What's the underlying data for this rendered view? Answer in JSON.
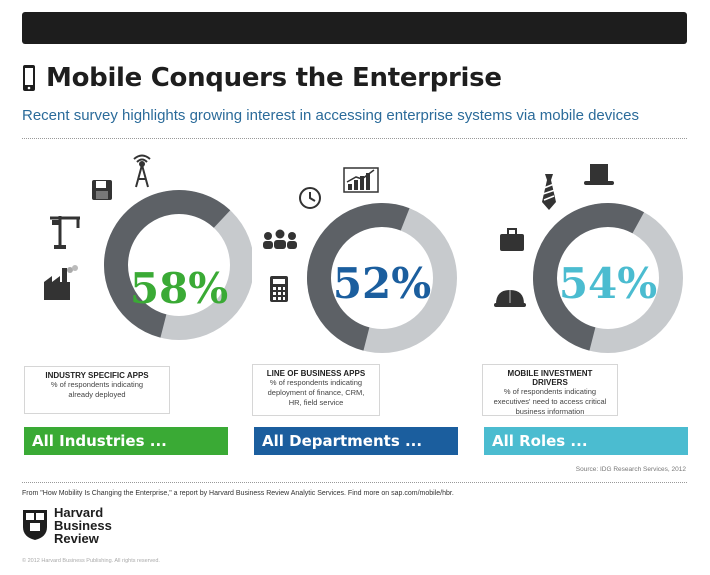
{
  "header": {
    "title": "Mobile Conquers the Enterprise",
    "subtitle": "Recent survey highlights growing interest in accessing enterprise systems via mobile devices"
  },
  "chart_data": [
    {
      "type": "pie",
      "value": 58,
      "label": "58%",
      "color": "#3aaa35",
      "caption_title": "INDUSTRY SPECIFIC APPS",
      "caption_lines": [
        "% of respondents indicating",
        "already deployed"
      ],
      "bar_label": "All Industries ...",
      "icons": [
        "floppy-disk-icon",
        "antenna-icon",
        "crane-icon",
        "factory-icon"
      ]
    },
    {
      "type": "pie",
      "value": 52,
      "label": "52%",
      "color": "#1b5e9e",
      "caption_title": "LINE OF BUSINESS APPS",
      "caption_lines": [
        "% of respondents indicating",
        "deployment of finance, CRM,",
        "HR, field service"
      ],
      "bar_label": "All Departments ...",
      "icons": [
        "clock-icon",
        "bar-chart-icon",
        "people-icon",
        "calculator-icon"
      ]
    },
    {
      "type": "pie",
      "value": 54,
      "label": "54%",
      "color": "#4bbcd0",
      "caption_title": "MOBILE INVESTMENT DRIVERS",
      "caption_lines": [
        "% of respondents indicating",
        "executives' need to access critical",
        "business information"
      ],
      "bar_label": "All Roles ...",
      "icons": [
        "tie-icon",
        "top-hat-icon",
        "briefcase-icon",
        "hard-hat-icon"
      ]
    }
  ],
  "ring_colors": {
    "filled": "#5d6166",
    "empty": "#c7cacd"
  },
  "source": "Source: IDG Research Services, 2012",
  "footnote": "From \"How Mobility Is Changing the Enterprise,\" a report by Harvard Business Review Analytic Services. Find more on sap.com/mobile/hbr.",
  "logo": {
    "lines": [
      "Harvard",
      "Business",
      "Review"
    ]
  },
  "copyright": "© 2012 Harvard Business Publishing. All rights reserved."
}
